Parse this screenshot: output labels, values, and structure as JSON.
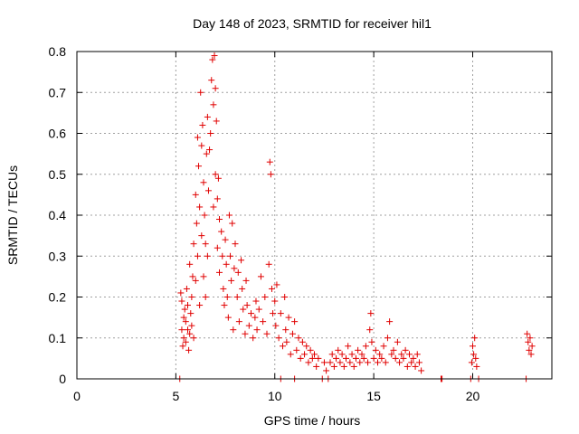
{
  "chart_data": {
    "type": "scatter",
    "title": "Day 148 of 2023, SRMTID for receiver hil1",
    "xlabel": "GPS time / hours",
    "ylabel": "SRMTID / TECUs",
    "xlim": [
      0,
      24
    ],
    "ylim": [
      0,
      0.8
    ],
    "xticks": [
      0,
      5,
      10,
      15,
      20
    ],
    "yticks": [
      0,
      0.1,
      0.2,
      0.3,
      0.4,
      0.5,
      0.6,
      0.7,
      0.8
    ],
    "xtick_labels": [
      "0",
      "5",
      "10",
      "15",
      "20"
    ],
    "ytick_labels": [
      "0",
      "0.1",
      "0.2",
      "0.3",
      "0.4",
      "0.5",
      "0.6",
      "0.7",
      "0.8"
    ],
    "grid": true,
    "marker": "plus",
    "series_color": "#e00000",
    "series": [
      {
        "name": "SRMTID",
        "points": [
          [
            5.2,
            0.0
          ],
          [
            5.25,
            0.21
          ],
          [
            5.3,
            0.19
          ],
          [
            5.3,
            0.12
          ],
          [
            5.35,
            0.08
          ],
          [
            5.4,
            0.15
          ],
          [
            5.4,
            0.1
          ],
          [
            5.45,
            0.17
          ],
          [
            5.5,
            0.14
          ],
          [
            5.5,
            0.09
          ],
          [
            5.55,
            0.22
          ],
          [
            5.6,
            0.12
          ],
          [
            5.6,
            0.18
          ],
          [
            5.65,
            0.07
          ],
          [
            5.7,
            0.11
          ],
          [
            5.7,
            0.28
          ],
          [
            5.75,
            0.16
          ],
          [
            5.8,
            0.2
          ],
          [
            5.8,
            0.13
          ],
          [
            5.85,
            0.25
          ],
          [
            5.9,
            0.1
          ],
          [
            5.9,
            0.33
          ],
          [
            6.0,
            0.45
          ],
          [
            6.0,
            0.24
          ],
          [
            6.05,
            0.38
          ],
          [
            6.1,
            0.59
          ],
          [
            6.1,
            0.3
          ],
          [
            6.15,
            0.52
          ],
          [
            6.2,
            0.42
          ],
          [
            6.2,
            0.18
          ],
          [
            6.25,
            0.7
          ],
          [
            6.3,
            0.35
          ],
          [
            6.3,
            0.57
          ],
          [
            6.35,
            0.62
          ],
          [
            6.4,
            0.48
          ],
          [
            6.4,
            0.25
          ],
          [
            6.45,
            0.4
          ],
          [
            6.5,
            0.33
          ],
          [
            6.5,
            0.2
          ],
          [
            6.55,
            0.55
          ],
          [
            6.6,
            0.64
          ],
          [
            6.6,
            0.3
          ],
          [
            6.65,
            0.46
          ],
          [
            6.7,
            0.56
          ],
          [
            6.75,
            0.6
          ],
          [
            6.8,
            0.73
          ],
          [
            6.85,
            0.78
          ],
          [
            6.9,
            0.67
          ],
          [
            6.9,
            0.42
          ],
          [
            6.95,
            0.79
          ],
          [
            7.0,
            0.71
          ],
          [
            7.0,
            0.5
          ],
          [
            7.05,
            0.63
          ],
          [
            7.1,
            0.44
          ],
          [
            7.1,
            0.32
          ],
          [
            7.15,
            0.49
          ],
          [
            7.2,
            0.39
          ],
          [
            7.2,
            0.26
          ],
          [
            7.3,
            0.36
          ],
          [
            7.35,
            0.3
          ],
          [
            7.4,
            0.22
          ],
          [
            7.45,
            0.18
          ],
          [
            7.5,
            0.34
          ],
          [
            7.55,
            0.28
          ],
          [
            7.6,
            0.2
          ],
          [
            7.65,
            0.15
          ],
          [
            7.7,
            0.4
          ],
          [
            7.75,
            0.3
          ],
          [
            7.8,
            0.24
          ],
          [
            7.85,
            0.38
          ],
          [
            7.9,
            0.12
          ],
          [
            7.95,
            0.27
          ],
          [
            8.0,
            0.33
          ],
          [
            8.1,
            0.2
          ],
          [
            8.15,
            0.26
          ],
          [
            8.2,
            0.14
          ],
          [
            8.3,
            0.29
          ],
          [
            8.35,
            0.22
          ],
          [
            8.4,
            0.17
          ],
          [
            8.5,
            0.11
          ],
          [
            8.55,
            0.24
          ],
          [
            8.6,
            0.18
          ],
          [
            8.7,
            0.13
          ],
          [
            8.8,
            0.16
          ],
          [
            8.9,
            0.1
          ],
          [
            9.0,
            0.15
          ],
          [
            9.05,
            0.19
          ],
          [
            9.1,
            0.12
          ],
          [
            9.2,
            0.17
          ],
          [
            9.3,
            0.25
          ],
          [
            9.4,
            0.14
          ],
          [
            9.5,
            0.2
          ],
          [
            9.6,
            0.11
          ],
          [
            9.7,
            0.28
          ],
          [
            9.75,
            0.53
          ],
          [
            9.8,
            0.5
          ],
          [
            9.85,
            0.22
          ],
          [
            9.9,
            0.16
          ],
          [
            10.0,
            0.19
          ],
          [
            10.05,
            0.13
          ],
          [
            10.1,
            0.23
          ],
          [
            10.2,
            0.1
          ],
          [
            10.3,
            0.0
          ],
          [
            10.3,
            0.16
          ],
          [
            10.4,
            0.08
          ],
          [
            10.5,
            0.2
          ],
          [
            10.55,
            0.12
          ],
          [
            10.6,
            0.09
          ],
          [
            10.7,
            0.15
          ],
          [
            10.8,
            0.06
          ],
          [
            10.9,
            0.11
          ],
          [
            11.0,
            0.0
          ],
          [
            11.0,
            0.14
          ],
          [
            11.1,
            0.07
          ],
          [
            11.2,
            0.1
          ],
          [
            11.3,
            0.05
          ],
          [
            11.4,
            0.09
          ],
          [
            11.5,
            0.06
          ],
          [
            11.6,
            0.08
          ],
          [
            11.7,
            0.04
          ],
          [
            11.8,
            0.07
          ],
          [
            11.9,
            0.05
          ],
          [
            12.0,
            0.06
          ],
          [
            12.1,
            0.03
          ],
          [
            12.2,
            0.05
          ],
          [
            12.4,
            0.0
          ],
          [
            12.5,
            0.04
          ],
          [
            12.6,
            0.02
          ],
          [
            12.7,
            0.0
          ],
          [
            12.8,
            0.04
          ],
          [
            12.9,
            0.06
          ],
          [
            13.0,
            0.03
          ],
          [
            13.1,
            0.05
          ],
          [
            13.2,
            0.07
          ],
          [
            13.3,
            0.04
          ],
          [
            13.4,
            0.06
          ],
          [
            13.5,
            0.03
          ],
          [
            13.6,
            0.05
          ],
          [
            13.7,
            0.08
          ],
          [
            13.8,
            0.04
          ],
          [
            13.9,
            0.06
          ],
          [
            14.0,
            0.03
          ],
          [
            14.1,
            0.05
          ],
          [
            14.2,
            0.07
          ],
          [
            14.3,
            0.04
          ],
          [
            14.4,
            0.06
          ],
          [
            14.5,
            0.05
          ],
          [
            14.6,
            0.08
          ],
          [
            14.7,
            0.04
          ],
          [
            14.8,
            0.12
          ],
          [
            14.85,
            0.16
          ],
          [
            14.9,
            0.09
          ],
          [
            15.0,
            0.05
          ],
          [
            15.1,
            0.07
          ],
          [
            15.2,
            0.04
          ],
          [
            15.3,
            0.06
          ],
          [
            15.4,
            0.05
          ],
          [
            15.5,
            0.08
          ],
          [
            15.6,
            0.04
          ],
          [
            15.7,
            0.1
          ],
          [
            15.8,
            0.14
          ],
          [
            15.9,
            0.06
          ],
          [
            16.0,
            0.07
          ],
          [
            16.1,
            0.05
          ],
          [
            16.2,
            0.09
          ],
          [
            16.3,
            0.04
          ],
          [
            16.4,
            0.06
          ],
          [
            16.5,
            0.05
          ],
          [
            16.6,
            0.07
          ],
          [
            16.7,
            0.03
          ],
          [
            16.8,
            0.06
          ],
          [
            16.9,
            0.04
          ],
          [
            17.0,
            0.05
          ],
          [
            17.1,
            0.03
          ],
          [
            17.2,
            0.06
          ],
          [
            17.3,
            0.04
          ],
          [
            17.4,
            0.02
          ],
          [
            18.4,
            0.0
          ],
          [
            18.45,
            0.0
          ],
          [
            19.9,
            0.0
          ],
          [
            19.95,
            0.04
          ],
          [
            20.0,
            0.08
          ],
          [
            20.05,
            0.06
          ],
          [
            20.1,
            0.1
          ],
          [
            20.15,
            0.05
          ],
          [
            20.2,
            0.03
          ],
          [
            20.3,
            0.0
          ],
          [
            22.7,
            0.0
          ],
          [
            22.75,
            0.11
          ],
          [
            22.8,
            0.09
          ],
          [
            22.85,
            0.07
          ],
          [
            22.9,
            0.1
          ],
          [
            22.95,
            0.06
          ],
          [
            23.0,
            0.08
          ]
        ]
      }
    ]
  }
}
